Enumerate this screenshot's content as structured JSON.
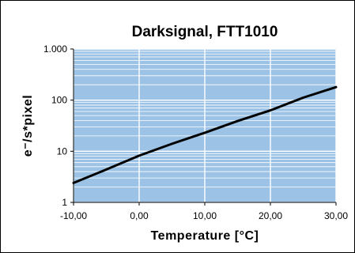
{
  "chart_data": {
    "type": "line",
    "title": "Darksignal, FTT1010",
    "xlabel": "Temperature [°C]",
    "ylabel": "e⁻/s*pixel",
    "xlim": [
      -10,
      30
    ],
    "ylim": [
      1,
      1000
    ],
    "yscale": "log",
    "grid": true,
    "x_ticks": [
      -10,
      0,
      10,
      20,
      30
    ],
    "x_tick_labels": [
      "-10,00",
      "0,00",
      "10,00",
      "20,00",
      "30,00"
    ],
    "y_ticks": [
      1,
      10,
      100,
      1000
    ],
    "y_tick_labels": [
      "1",
      "10",
      "100",
      "1.000"
    ],
    "colors": {
      "plot_background": "#9cc3e6",
      "grid": "#ffffff",
      "line": "#000000"
    },
    "series": [
      {
        "x": [
          -10,
          -5,
          0,
          5,
          10,
          15,
          20,
          25,
          30
        ],
        "y": [
          2.4,
          4.4,
          8.2,
          14,
          23,
          39,
          63,
          112,
          180
        ]
      }
    ]
  }
}
